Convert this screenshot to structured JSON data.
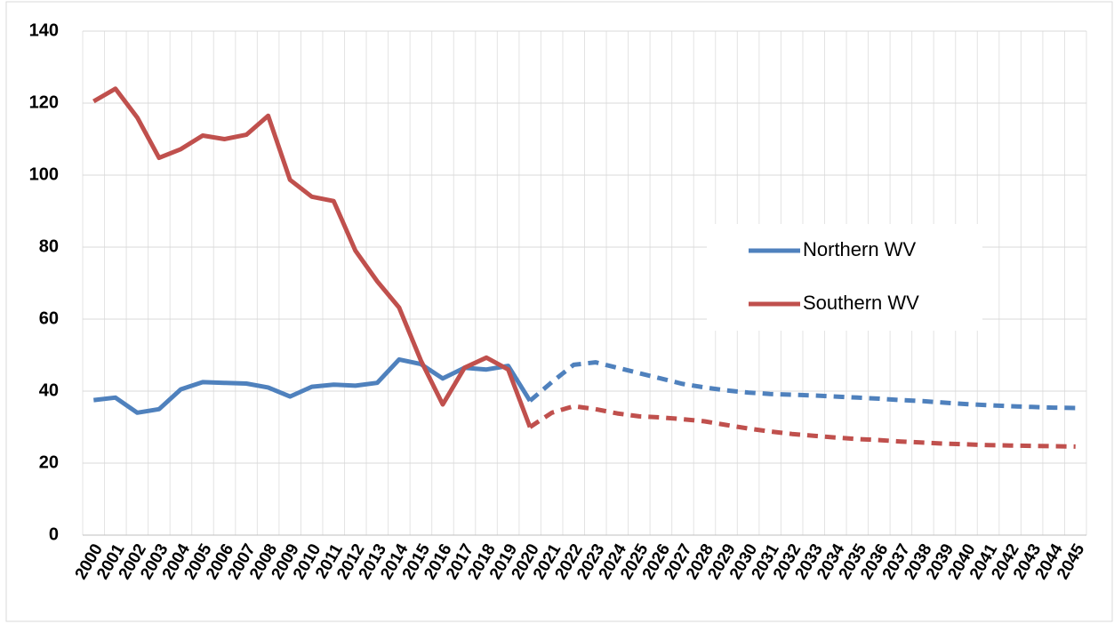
{
  "chart_data": {
    "type": "line",
    "x": [
      2000,
      2001,
      2002,
      2003,
      2004,
      2005,
      2006,
      2007,
      2008,
      2009,
      2010,
      2011,
      2012,
      2013,
      2014,
      2015,
      2016,
      2017,
      2018,
      2019,
      2020,
      2021,
      2022,
      2023,
      2024,
      2025,
      2026,
      2027,
      2028,
      2029,
      2030,
      2031,
      2032,
      2033,
      2034,
      2035,
      2036,
      2037,
      2038,
      2039,
      2040,
      2041,
      2042,
      2043,
      2044,
      2045
    ],
    "series": [
      {
        "name": "Northern WV",
        "color": "#4f81bd",
        "values": [
          37.5,
          38.2,
          34,
          35,
          40.5,
          42.5,
          42.3,
          42.1,
          41,
          38.5,
          41.2,
          41.8,
          41.5,
          42.3,
          48.8,
          47.5,
          43.5,
          46.5,
          46,
          47,
          37.3,
          42.5,
          47.3,
          48,
          46.5,
          45,
          43.5,
          42,
          41,
          40.2,
          39.6,
          39.2,
          39,
          38.8,
          38.5,
          38.2,
          37.9,
          37.5,
          37.2,
          36.8,
          36.4,
          36.1,
          35.8,
          35.6,
          35.4,
          35.3
        ]
      },
      {
        "name": "Southern WV",
        "color": "#c0504d",
        "values": [
          120.5,
          124,
          116,
          104.8,
          107.2,
          111,
          110,
          111.2,
          116.5,
          98.7,
          94,
          92.8,
          79,
          70.5,
          63.2,
          48.5,
          36.3,
          46.5,
          49.3,
          46,
          30,
          34,
          35.8,
          35,
          33.8,
          33,
          32.7,
          32.2,
          31.6,
          30.6,
          29.6,
          28.8,
          28.1,
          27.6,
          27.1,
          26.7,
          26.4,
          26,
          25.7,
          25.4,
          25.2,
          25,
          24.9,
          24.8,
          24.7,
          24.6
        ]
      }
    ],
    "dashed_from": 2020,
    "ylim": [
      0,
      140
    ],
    "yticks": [
      0,
      20,
      40,
      60,
      80,
      100,
      120,
      140
    ],
    "grid": true,
    "legend": "right"
  }
}
